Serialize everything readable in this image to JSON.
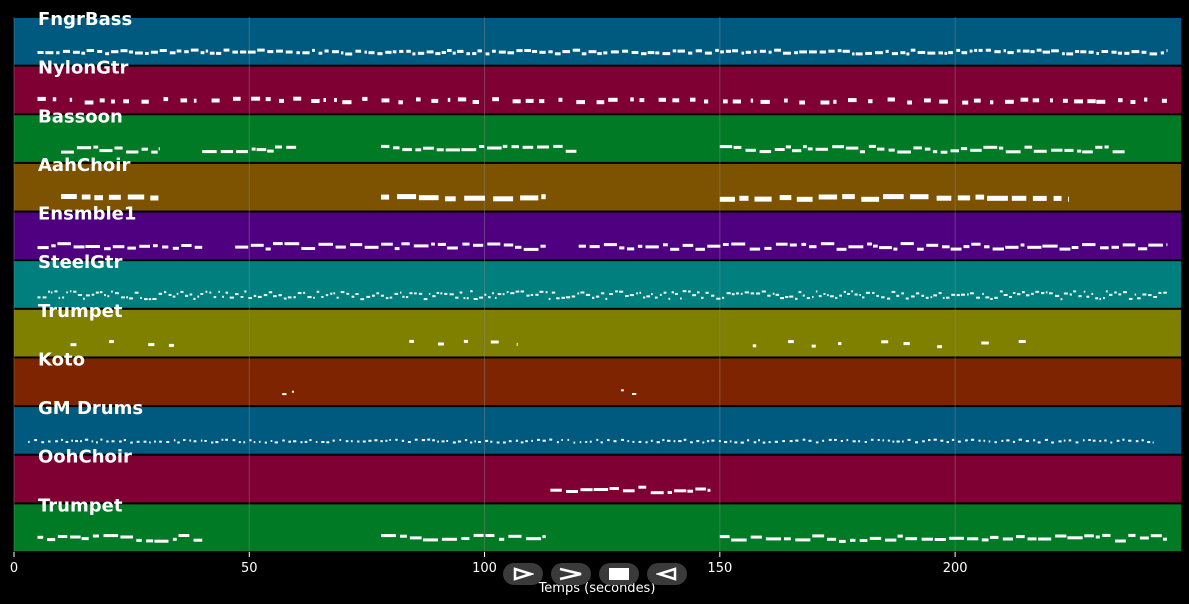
{
  "colors": {
    "background": "#000000",
    "note": "#ffffff",
    "grid": "#8a8a8a",
    "tracks": [
      "#005a80",
      "#7f0033",
      "#007a24",
      "#7d5200",
      "#4e0080",
      "#007f7f",
      "#7f7f00",
      "#7f2400",
      "#005a80",
      "#7f0033",
      "#007a24"
    ]
  },
  "chart_data": {
    "type": "piano-roll",
    "xlabel": "Temps (secondes)",
    "xlim": [
      0,
      248
    ],
    "xticks": [
      0,
      50,
      100,
      150,
      200
    ],
    "grid": true,
    "tracks": [
      {
        "name": "FngrBass",
        "segments": [
          [
            5,
            245
          ]
        ],
        "density": "dense-short",
        "pattern": "lowline"
      },
      {
        "name": "NylonGtr",
        "segments": [
          [
            5,
            230
          ],
          [
            230,
            245
          ]
        ],
        "density": "dashed",
        "pattern": "dots"
      },
      {
        "name": "Bassoon",
        "segments": [
          [
            10,
            31
          ],
          [
            40,
            60
          ],
          [
            78,
            120
          ],
          [
            150,
            227
          ],
          [
            227,
            236
          ]
        ],
        "density": "phrases",
        "pattern": "phrase"
      },
      {
        "name": "AahChoir",
        "segments": [
          [
            10,
            31
          ],
          [
            78,
            113
          ],
          [
            150,
            224
          ]
        ],
        "density": "blocks",
        "pattern": "block"
      },
      {
        "name": "Ensmble1",
        "segments": [
          [
            5,
            40
          ],
          [
            47,
            113
          ],
          [
            120,
            245
          ]
        ],
        "density": "phrases",
        "pattern": "phrase"
      },
      {
        "name": "SteelGtr",
        "segments": [
          [
            5,
            245
          ]
        ],
        "density": "dense-short",
        "pattern": "dense"
      },
      {
        "name": "Trumpet",
        "segments": [
          [
            12,
            34
          ],
          [
            84,
            107
          ],
          [
            157,
            217
          ]
        ],
        "density": "sparse",
        "pattern": "sparse"
      },
      {
        "name": "Koto",
        "segments": [
          [
            57,
            60
          ],
          [
            129,
            133
          ]
        ],
        "density": "sparse",
        "pattern": "tiny"
      },
      {
        "name": "GM Drums",
        "segments": [
          [
            3,
            242
          ]
        ],
        "density": "dense-short",
        "pattern": "drums"
      },
      {
        "name": "OohChoir",
        "segments": [
          [
            114,
            148
          ]
        ],
        "density": "phrases",
        "pattern": "phrase"
      },
      {
        "name": "Trumpet",
        "segments": [
          [
            5,
            40
          ],
          [
            78,
            113
          ],
          [
            150,
            245
          ]
        ],
        "density": "phrases",
        "pattern": "phrase"
      }
    ]
  },
  "controls": [
    {
      "name": "play-button",
      "icon": "play-icon"
    },
    {
      "name": "forward-button",
      "icon": "forward-icon"
    },
    {
      "name": "stop-button",
      "icon": "stop-icon"
    },
    {
      "name": "rewind-button",
      "icon": "rewind-icon"
    }
  ]
}
